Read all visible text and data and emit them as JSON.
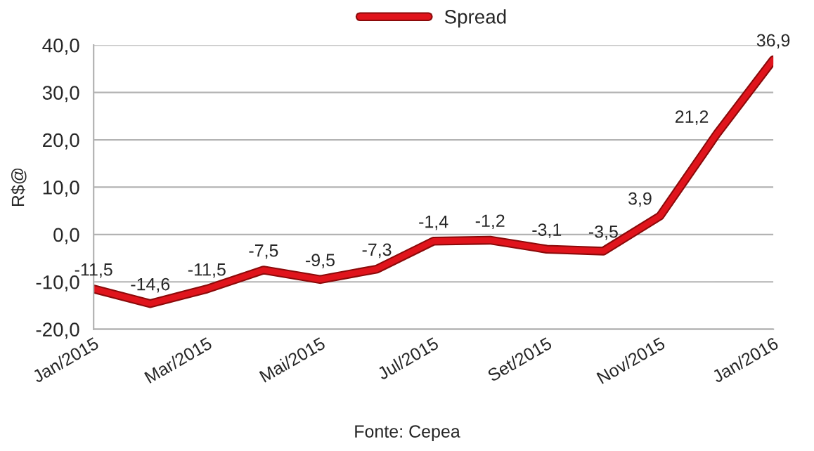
{
  "chart_data": {
    "type": "line",
    "ylabel": "R$@",
    "categories": [
      "Jan/2015",
      null,
      "Mar/2015",
      null,
      "Mai/2015",
      null,
      "Jul/2015",
      null,
      "Set/2015",
      null,
      "Nov/2015",
      null,
      "Jan/2016"
    ],
    "series": [
      {
        "name": "Spread",
        "color": "#e0141c",
        "values": [
          -11.5,
          -14.6,
          -11.5,
          -7.5,
          -9.5,
          -7.3,
          -1.4,
          -1.2,
          -3.1,
          -3.5,
          3.9,
          21.2,
          36.9
        ],
        "value_labels": [
          "-11,5",
          "-14,6",
          "-11,5",
          "-7,5",
          "-9,5",
          "-7,3",
          "-1,4",
          "-1,2",
          "-3,1",
          "-3,5",
          "3,9",
          "21,2",
          "36,9"
        ]
      }
    ],
    "ylim": [
      -20,
      40
    ],
    "yticks": [
      {
        "value": -20,
        "label": "-20,0"
      },
      {
        "value": -10,
        "label": "-10,0"
      },
      {
        "value": 0,
        "label": "0,0"
      },
      {
        "value": 10,
        "label": "10,0"
      },
      {
        "value": 20,
        "label": "20,0"
      },
      {
        "value": 30,
        "label": "30,0"
      },
      {
        "value": 40,
        "label": "40,0"
      }
    ],
    "grid": "y",
    "legend": "top",
    "marker": "none",
    "line_style": "solid",
    "annotations": [
      "Fonte: Cepea"
    ]
  }
}
